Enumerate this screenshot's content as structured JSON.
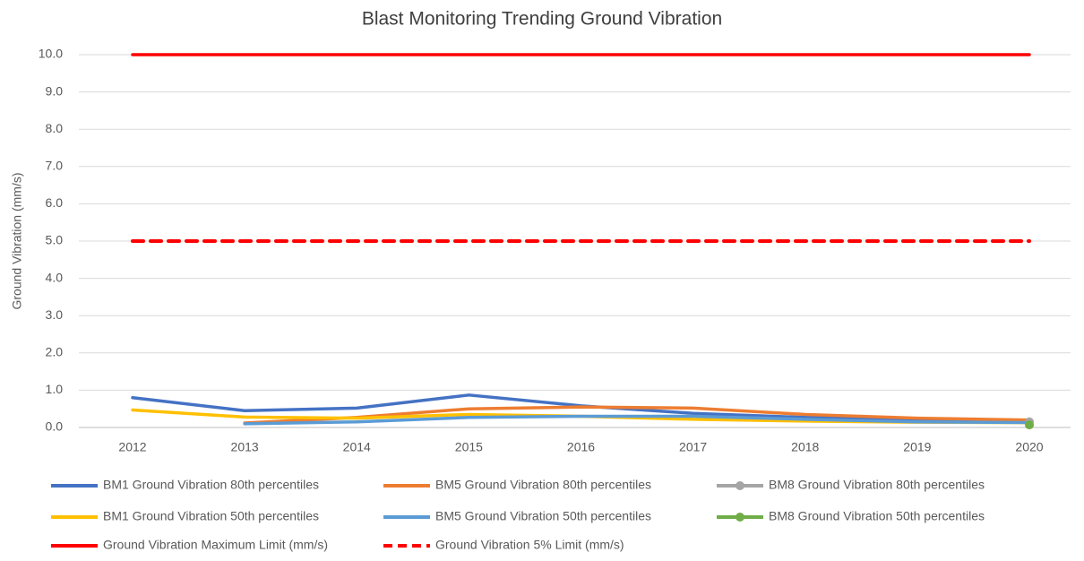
{
  "chart_data": {
    "type": "line",
    "title": "Blast Monitoring Trending Ground Vibration",
    "y_label": "Ground Vibration (mm/s)",
    "categories": [
      "2012",
      "2013",
      "2014",
      "2015",
      "2016",
      "2017",
      "2018",
      "2019",
      "2020"
    ],
    "ylim": [
      0,
      10
    ],
    "yticks": [
      {
        "value": 0,
        "label": "0.0"
      },
      {
        "value": 1,
        "label": "1.0"
      },
      {
        "value": 2,
        "label": "2.0"
      },
      {
        "value": 3,
        "label": "3.0"
      },
      {
        "value": 4,
        "label": "4.0"
      },
      {
        "value": 5,
        "label": "5.0"
      },
      {
        "value": 6,
        "label": "6.0"
      },
      {
        "value": 7,
        "label": "7.0"
      },
      {
        "value": 8,
        "label": "8.0"
      },
      {
        "value": 9,
        "label": "9.0"
      },
      {
        "value": 10,
        "label": "10.0"
      }
    ],
    "grid": true,
    "series": [
      {
        "name": "BM1 Ground Vibration 80th percentiles",
        "color": "#4472c4",
        "values": [
          0.8,
          0.45,
          0.52,
          0.87,
          0.58,
          0.38,
          0.27,
          0.2,
          0.18
        ]
      },
      {
        "name": "BM5 Ground Vibration 80th percentiles",
        "color": "#ed7d31",
        "values": [
          null,
          0.12,
          0.27,
          0.5,
          0.55,
          0.52,
          0.35,
          0.25,
          0.2
        ]
      },
      {
        "name": "BM8 Ground Vibration 80th percentiles",
        "color": "#a5a5a5",
        "marker": true,
        "values": [
          null,
          null,
          null,
          null,
          null,
          null,
          null,
          null,
          0.15
        ]
      },
      {
        "name": "BM1 Ground Vibration 50th percentiles",
        "color": "#ffc000",
        "values": [
          0.47,
          0.28,
          0.25,
          0.35,
          0.3,
          0.22,
          0.17,
          0.14,
          0.13
        ]
      },
      {
        "name": "BM5 Ground Vibration 50th percentiles",
        "color": "#5b9bd5",
        "values": [
          null,
          0.1,
          0.15,
          0.27,
          0.3,
          0.3,
          0.22,
          0.15,
          0.13
        ]
      },
      {
        "name": "BM8 Ground Vibration 50th percentiles",
        "color": "#70ad47",
        "marker": true,
        "values": [
          null,
          null,
          null,
          null,
          null,
          null,
          null,
          null,
          0.07
        ]
      },
      {
        "name": "Ground Vibration Maximum Limit (mm/s)",
        "color": "#ff0000",
        "values": [
          10,
          10,
          10,
          10,
          10,
          10,
          10,
          10,
          10
        ]
      },
      {
        "name": "Ground Vibration 5% Limit (mm/s)",
        "color": "#ff0000",
        "dash": true,
        "values": [
          5,
          5,
          5,
          5,
          5,
          5,
          5,
          5,
          5
        ]
      }
    ]
  }
}
